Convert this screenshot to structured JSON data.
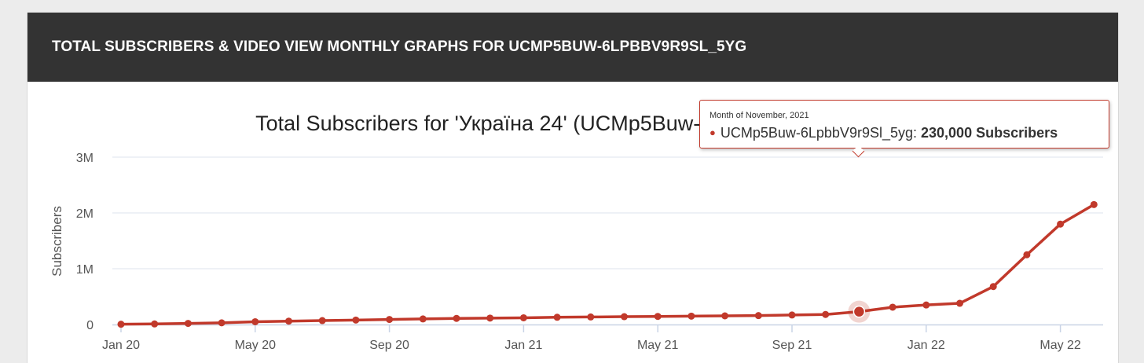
{
  "header": {
    "title": "TOTAL SUBSCRIBERS & VIDEO VIEW MONTHLY GRAPHS FOR UCMP5BUW-6LPBBV9R9SL_5YG"
  },
  "tooltip": {
    "date": "Month of November, 2021",
    "series": "UCMp5Buw-6LpbbV9r9Sl_5yg:",
    "value": "230,000 Subscribers"
  },
  "colors": {
    "line": "#c1392b",
    "header_bg": "#333333",
    "grid": "#dde3ee"
  },
  "chart_data": {
    "type": "line",
    "title": "Total Subscribers for 'Україна 24' (UCMp5Buw-6LpbbV9r9Sl_5yg)",
    "ylabel": "Subscribers",
    "xlabel": "",
    "ylim": [
      0,
      3000000
    ],
    "yticks": [
      0,
      1000000,
      2000000,
      3000000
    ],
    "ytick_labels": [
      "0",
      "1M",
      "2M",
      "3M"
    ],
    "xtick_labels": [
      "Jan 20",
      "May 20",
      "Sep 20",
      "Jan 21",
      "May 21",
      "Sep 21",
      "Jan 22",
      "May 22"
    ],
    "grid": true,
    "highlight": "Nov 21",
    "series": [
      {
        "name": "UCMp5Buw-6LpbbV9r9Sl_5yg",
        "x": [
          "Jan 20",
          "Feb 20",
          "Mar 20",
          "Apr 20",
          "May 20",
          "Jun 20",
          "Jul 20",
          "Aug 20",
          "Sep 20",
          "Oct 20",
          "Nov 20",
          "Dec 20",
          "Jan 21",
          "Feb 21",
          "Mar 21",
          "Apr 21",
          "May 21",
          "Jun 21",
          "Jul 21",
          "Aug 21",
          "Sep 21",
          "Oct 21",
          "Nov 21",
          "Dec 21",
          "Jan 22",
          "Feb 22",
          "Mar 22",
          "Apr 22",
          "May 22",
          "Jun 22"
        ],
        "values": [
          5000,
          10000,
          20000,
          30000,
          50000,
          60000,
          70000,
          80000,
          90000,
          100000,
          110000,
          115000,
          120000,
          130000,
          135000,
          140000,
          145000,
          150000,
          155000,
          160000,
          170000,
          180000,
          230000,
          310000,
          350000,
          380000,
          680000,
          1250000,
          1800000,
          2150000
        ]
      }
    ]
  }
}
